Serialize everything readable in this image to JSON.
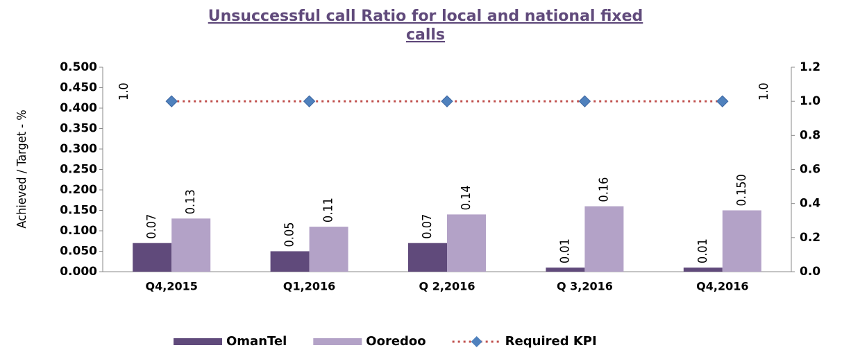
{
  "chart_data": {
    "type": "bar",
    "title": "Unsuccessful call Ratio for local and national fixed calls",
    "title_lines": [
      "Unsuccessful call Ratio for local and national fixed",
      "calls"
    ],
    "ylabel": "Achieved / Target - %",
    "categories": [
      "Q4,2015",
      "Q1,2016",
      "Q 2,2016",
      "Q 3,2016",
      "Q4,2016"
    ],
    "series": [
      {
        "name": "OmanTel",
        "color": "#604a7b",
        "values": [
          0.07,
          0.05,
          0.07,
          0.01,
          0.01
        ]
      },
      {
        "name": "Ooredoo",
        "color": "#b3a2c7",
        "values": [
          0.13,
          0.11,
          0.14,
          0.16,
          0.15
        ],
        "value_labels": [
          "0.13",
          "0.11",
          "0.14",
          "0.16",
          "0.150"
        ]
      },
      {
        "name": "Required KPI",
        "type": "line",
        "axis": "y2",
        "color": "#c0504d",
        "marker_color": "#4f81bd",
        "values": [
          1.0,
          1.0,
          1.0,
          1.0,
          1.0
        ],
        "value_labels": [
          "1.0",
          null,
          null,
          null,
          "1.0"
        ]
      }
    ],
    "ylim": [
      0,
      0.5
    ],
    "yticks": [
      {
        "value": 0,
        "label": "0.000"
      },
      {
        "value": 0.05,
        "label": "0.050"
      },
      {
        "value": 0.1,
        "label": "0.100"
      },
      {
        "value": 0.15,
        "label": "0.150"
      },
      {
        "value": 0.2,
        "label": "0.200"
      },
      {
        "value": 0.25,
        "label": "0.250"
      },
      {
        "value": 0.3,
        "label": "0.300"
      },
      {
        "value": 0.35,
        "label": "0.350"
      },
      {
        "value": 0.4,
        "label": "0.400"
      },
      {
        "value": 0.45,
        "label": "0.450"
      },
      {
        "value": 0.5,
        "label": "0.500"
      }
    ],
    "y2lim": [
      0,
      1.2
    ],
    "y2ticks": [
      {
        "value": 0,
        "label": "0.0"
      },
      0.2,
      0.4,
      0.6,
      0.8,
      {
        "value": 1,
        "label": "1.0"
      },
      1.2
    ],
    "grid": false,
    "legend": "bottom"
  }
}
